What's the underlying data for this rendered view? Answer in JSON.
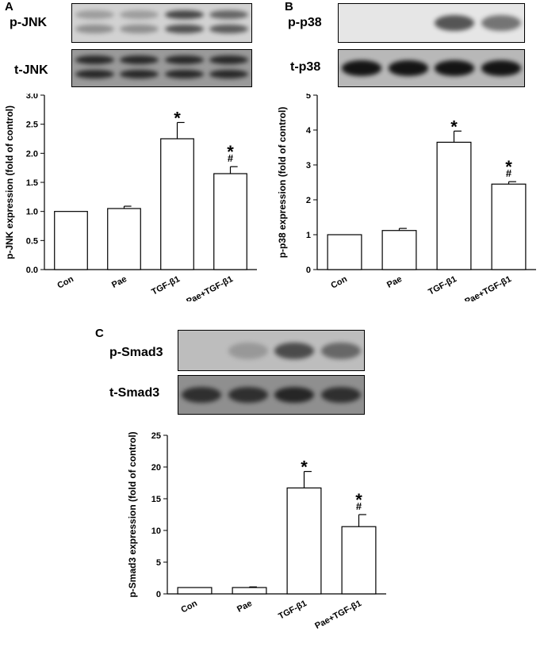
{
  "panels": [
    {
      "letter": "A",
      "blots": [
        {
          "label": "p-JNK",
          "background": "#d2d2d2",
          "bands": [
            {
              "lane": 0,
              "row": "top",
              "intensity": 0.25
            },
            {
              "lane": 0,
              "row": "bottom",
              "intensity": 0.35
            },
            {
              "lane": 1,
              "row": "top",
              "intensity": 0.25
            },
            {
              "lane": 1,
              "row": "bottom",
              "intensity": 0.35
            },
            {
              "lane": 2,
              "row": "top",
              "intensity": 0.75
            },
            {
              "lane": 2,
              "row": "bottom",
              "intensity": 0.7
            },
            {
              "lane": 3,
              "row": "top",
              "intensity": 0.6
            },
            {
              "lane": 3,
              "row": "bottom",
              "intensity": 0.65
            }
          ]
        },
        {
          "label": "t-JNK",
          "background": "#9a9a9a",
          "bands": [
            {
              "lane": 0,
              "row": "top",
              "intensity": 0.85
            },
            {
              "lane": 0,
              "row": "bottom",
              "intensity": 0.85
            },
            {
              "lane": 1,
              "row": "top",
              "intensity": 0.85
            },
            {
              "lane": 1,
              "row": "bottom",
              "intensity": 0.85
            },
            {
              "lane": 2,
              "row": "top",
              "intensity": 0.85
            },
            {
              "lane": 2,
              "row": "bottom",
              "intensity": 0.85
            },
            {
              "lane": 3,
              "row": "top",
              "intensity": 0.85
            },
            {
              "lane": 3,
              "row": "bottom",
              "intensity": 0.85
            }
          ]
        }
      ]
    },
    {
      "letter": "B",
      "blots": [
        {
          "label": "p-p38",
          "background": "#e6e6e6",
          "bands": [
            {
              "lane": 2,
              "row": "mid",
              "intensity": 0.7
            },
            {
              "lane": 3,
              "row": "mid",
              "intensity": 0.55
            }
          ]
        },
        {
          "label": "t-p38",
          "background": "#b8b8b8",
          "bands": [
            {
              "lane": 0,
              "row": "mid",
              "intensity": 0.95
            },
            {
              "lane": 1,
              "row": "mid",
              "intensity": 0.95
            },
            {
              "lane": 2,
              "row": "mid",
              "intensity": 0.95
            },
            {
              "lane": 3,
              "row": "mid",
              "intensity": 0.95
            }
          ]
        }
      ]
    },
    {
      "letter": "C",
      "blots": [
        {
          "label": "p-Smad3",
          "background": "#bdbdbd",
          "bands": [
            {
              "lane": 1,
              "row": "mid",
              "intensity": 0.2
            },
            {
              "lane": 2,
              "row": "mid",
              "intensity": 0.7
            },
            {
              "lane": 3,
              "row": "mid",
              "intensity": 0.55
            }
          ]
        },
        {
          "label": "t-Smad3",
          "background": "#8f8f8f",
          "bands": [
            {
              "lane": 0,
              "row": "mid",
              "intensity": 0.8
            },
            {
              "lane": 1,
              "row": "mid",
              "intensity": 0.8
            },
            {
              "lane": 2,
              "row": "mid",
              "intensity": 0.85
            },
            {
              "lane": 3,
              "row": "mid",
              "intensity": 0.8
            }
          ]
        }
      ]
    }
  ],
  "chart_data": [
    {
      "type": "bar",
      "categories": [
        "Con",
        "Pae",
        "TGF-β1",
        "Pae+TGF-β1"
      ],
      "values": [
        1.0,
        1.05,
        2.25,
        1.65
      ],
      "errors": [
        0,
        0.04,
        0.28,
        0.12
      ],
      "annotations": [
        "",
        "",
        "*",
        "*\n#"
      ],
      "ylabel": "p-JNK expression (fold of control)",
      "ylim": [
        0,
        3.0
      ],
      "yticks": [
        "0.0",
        "0.5",
        "1.0",
        "1.5",
        "2.0",
        "2.5",
        "3.0"
      ],
      "grid": false
    },
    {
      "type": "bar",
      "categories": [
        "Con",
        "Pae",
        "TGF-β1",
        "Pae+TGF-β1"
      ],
      "values": [
        1.0,
        1.12,
        3.65,
        2.45
      ],
      "errors": [
        0,
        0.06,
        0.32,
        0.07
      ],
      "annotations": [
        "",
        "",
        "*",
        "*\n#"
      ],
      "ylabel": "p-p38 expression (fold of control)",
      "ylim": [
        0,
        5
      ],
      "yticks": [
        "0",
        "1",
        "2",
        "3",
        "4",
        "5"
      ],
      "grid": false
    },
    {
      "type": "bar",
      "categories": [
        "Con",
        "Pae",
        "TGF-β1",
        "Pae+TGF-β1"
      ],
      "values": [
        1.0,
        1.0,
        16.7,
        10.6
      ],
      "errors": [
        0,
        0.1,
        2.6,
        1.9
      ],
      "annotations": [
        "",
        "",
        "*",
        "*\n#"
      ],
      "ylabel": "p-Smad3 expression (fold of control)",
      "ylim": [
        0,
        25
      ],
      "yticks": [
        "0",
        "5",
        "10",
        "15",
        "20",
        "25"
      ],
      "grid": false
    }
  ]
}
